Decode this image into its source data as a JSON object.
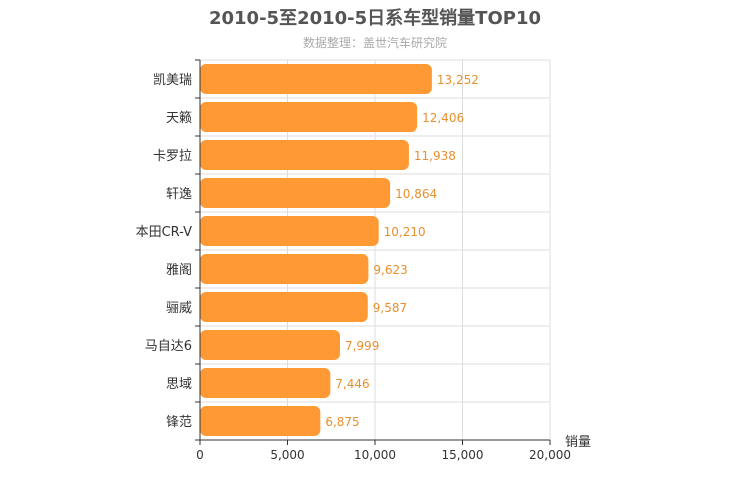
{
  "chart_data": {
    "type": "bar",
    "orientation": "horizontal",
    "title": "2010-5至2010-5日系车型销量TOP10",
    "subtitle": "数据整理：盖世汽车研究院",
    "xlabel": "销量",
    "ylabel": "",
    "categories": [
      "凯美瑞",
      "天籁",
      "卡罗拉",
      "轩逸",
      "本田CR-V",
      "雅阁",
      "骊威",
      "马自达6",
      "思域",
      "锋范"
    ],
    "values": [
      13252,
      12406,
      11938,
      10864,
      10210,
      9623,
      9587,
      7999,
      7446,
      6875
    ],
    "value_labels": [
      "13,252",
      "12,406",
      "11,938",
      "10,864",
      "10,210",
      "9,623",
      "9,587",
      "7,999",
      "7,446",
      "6,875"
    ],
    "xlim": [
      0,
      20000
    ],
    "x_ticks": [
      0,
      5000,
      10000,
      15000,
      20000
    ],
    "x_tick_labels": [
      "0",
      "5,000",
      "10,000",
      "15,000",
      "20,000"
    ],
    "grid": true,
    "bar_color": "#ff9933",
    "value_label_color": "#e8902f"
  }
}
